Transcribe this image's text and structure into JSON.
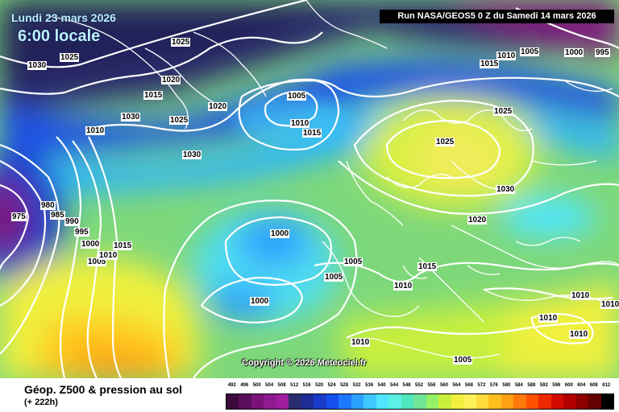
{
  "header": {
    "date": "Lundi 23 mars 2026",
    "hour": "6:00 locale",
    "run": "Run NASA/GEOS5 0 Z du Samedi 14 mars 2026"
  },
  "copyright": "Copyright © 2026 Meteociel.fr",
  "footer": {
    "title": "Géop. Z500 & pression au sol",
    "subtitle": "(+ 222h)"
  },
  "isobar_labels": [
    {
      "id": "i1",
      "text": "1025"
    },
    {
      "id": "i2",
      "text": "1030"
    },
    {
      "id": "i3",
      "text": "1025"
    },
    {
      "id": "i4",
      "text": "1020"
    },
    {
      "id": "i5",
      "text": "1015"
    },
    {
      "id": "i6",
      "text": "1010"
    },
    {
      "id": "i7",
      "text": "1030"
    },
    {
      "id": "i8",
      "text": "1025"
    },
    {
      "id": "i9",
      "text": "1020"
    },
    {
      "id": "i10",
      "text": "1005"
    },
    {
      "id": "i11",
      "text": "1010"
    },
    {
      "id": "i12",
      "text": "1015"
    },
    {
      "id": "i13",
      "text": "1030"
    },
    {
      "id": "i14",
      "text": "980"
    },
    {
      "id": "i15",
      "text": "975"
    },
    {
      "id": "i16",
      "text": "985"
    },
    {
      "id": "i17",
      "text": "990"
    },
    {
      "id": "i18",
      "text": "995"
    },
    {
      "id": "i19",
      "text": "1000"
    },
    {
      "id": "i20",
      "text": "1005"
    },
    {
      "id": "i21",
      "text": "1010"
    },
    {
      "id": "i22",
      "text": "1015"
    },
    {
      "id": "i23",
      "text": "1000"
    },
    {
      "id": "i24",
      "text": "1000"
    },
    {
      "id": "i25",
      "text": "1005"
    },
    {
      "id": "i26",
      "text": "1005"
    },
    {
      "id": "i27",
      "text": "1010"
    },
    {
      "id": "i28",
      "text": "1015"
    },
    {
      "id": "i29",
      "text": "1020"
    },
    {
      "id": "i30",
      "text": "1025"
    },
    {
      "id": "i31",
      "text": "1025"
    },
    {
      "id": "i32",
      "text": "1030"
    },
    {
      "id": "i33",
      "text": "1015"
    },
    {
      "id": "i34",
      "text": "1010"
    },
    {
      "id": "i35",
      "text": "1005"
    },
    {
      "id": "i36",
      "text": "1000"
    },
    {
      "id": "i37",
      "text": "995"
    },
    {
      "id": "i38",
      "text": "1010"
    },
    {
      "id": "i39",
      "text": "1010"
    },
    {
      "id": "i40",
      "text": "1010"
    },
    {
      "id": "i41",
      "text": "1010"
    },
    {
      "id": "i42",
      "text": "1010"
    },
    {
      "id": "i43",
      "text": "1005"
    }
  ],
  "scale": {
    "values": [
      "492",
      "496",
      "500",
      "504",
      "508",
      "512",
      "516",
      "520",
      "524",
      "528",
      "532",
      "536",
      "540",
      "544",
      "548",
      "552",
      "556",
      "560",
      "564",
      "568",
      "572",
      "576",
      "580",
      "584",
      "588",
      "592",
      "596",
      "600",
      "604",
      "608",
      "612"
    ],
    "colors": [
      "#3c0a3c",
      "#5a0f5a",
      "#7a127a",
      "#8f1a8f",
      "#a01da0",
      "#2a2a6e",
      "#1e2d96",
      "#1a3cc8",
      "#1450f0",
      "#1e78ff",
      "#2aa0ff",
      "#3cc8ff",
      "#50e6ff",
      "#5af0e6",
      "#50e6be",
      "#6ee696",
      "#96f064",
      "#c8f03c",
      "#f0f03c",
      "#fff05a",
      "#ffdc3c",
      "#ffbe1e",
      "#ffa014",
      "#ff780a",
      "#ff5000",
      "#f02800",
      "#d20a00",
      "#b40000",
      "#8c0000",
      "#640000",
      "#000000"
    ]
  }
}
